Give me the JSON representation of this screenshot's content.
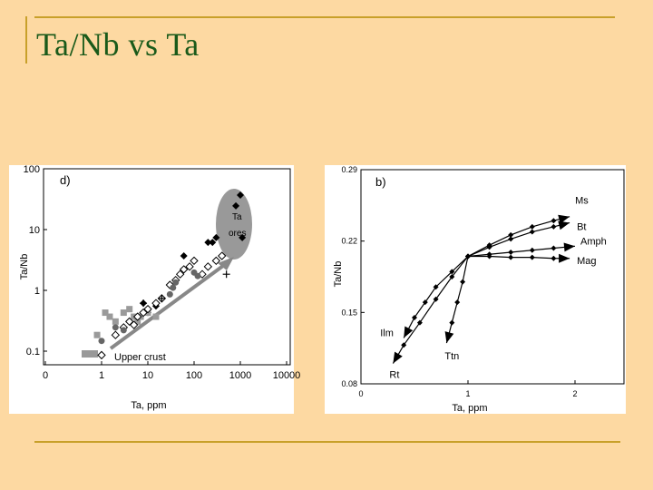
{
  "slide": {
    "title": "Ta/Nb vs Ta"
  },
  "chart_data": [
    {
      "type": "scatter",
      "panel_label": "d)",
      "xlabel": "Ta, ppm",
      "ylabel": "Ta/Nb",
      "x_scale": "log",
      "y_scale": "log",
      "x_ticks": [
        "0",
        "1",
        "10",
        "100",
        "1000",
        "10000"
      ],
      "y_ticks": [
        "100",
        "10",
        "1",
        "0.1"
      ],
      "annotations": [
        "Ta",
        "ores",
        "Upper crust"
      ],
      "series": [
        {
          "marker": "filled-diamond",
          "points": [
            [
              1000,
              30
            ],
            [
              800,
              20
            ],
            [
              1100,
              6
            ],
            [
              300,
              6
            ],
            [
              250,
              5
            ],
            [
              200,
              5
            ],
            [
              60,
              3
            ],
            [
              20,
              0.6
            ],
            [
              15,
              0.45
            ],
            [
              10,
              0.35
            ],
            [
              8,
              0.5
            ]
          ]
        },
        {
          "marker": "grey-square",
          "points": [
            [
              0.8,
              0.15
            ],
            [
              1.2,
              0.35
            ],
            [
              1.5,
              0.3
            ],
            [
              2,
              0.25
            ],
            [
              3,
              0.35
            ],
            [
              4,
              0.4
            ],
            [
              5,
              0.3
            ],
            [
              6,
              0.25
            ],
            [
              7,
              0.3
            ],
            [
              10,
              0.35
            ],
            [
              15,
              0.3
            ]
          ]
        },
        {
          "marker": "open-diamond",
          "points": [
            [
              1,
              0.07
            ],
            [
              2,
              0.15
            ],
            [
              3,
              0.2
            ],
            [
              4,
              0.25
            ],
            [
              5,
              0.22
            ],
            [
              6,
              0.3
            ],
            [
              8,
              0.35
            ],
            [
              10,
              0.4
            ],
            [
              15,
              0.5
            ],
            [
              20,
              0.6
            ],
            [
              30,
              1
            ],
            [
              40,
              1.2
            ],
            [
              50,
              1.5
            ],
            [
              60,
              1.8
            ],
            [
              80,
              2
            ],
            [
              100,
              2.5
            ],
            [
              150,
              1.5
            ],
            [
              200,
              2
            ],
            [
              300,
              2.5
            ],
            [
              400,
              3
            ]
          ]
        },
        {
          "marker": "grey-circle",
          "points": [
            [
              1,
              0.12
            ],
            [
              2,
              0.2
            ],
            [
              3,
              0.18
            ],
            [
              30,
              0.7
            ],
            [
              35,
              0.9
            ],
            [
              40,
              1.1
            ],
            [
              100,
              1.6
            ],
            [
              120,
              1.4
            ]
          ]
        },
        {
          "marker": "cross",
          "points": [
            [
              8,
              0.5
            ],
            [
              20,
              0.6
            ],
            [
              500,
              1.5
            ]
          ]
        }
      ]
    },
    {
      "type": "line",
      "panel_label": "b)",
      "xlabel": "Ta, ppm",
      "ylabel": "Ta/Nb",
      "x_ticks": [
        "0",
        "1",
        "2"
      ],
      "y_ticks": [
        "0.29",
        "0.22",
        "0.15",
        "0.08"
      ],
      "xlim": [
        0,
        2.5
      ],
      "ylim": [
        0.08,
        0.29
      ],
      "series": [
        {
          "name": "Ms",
          "x": [
            1,
            1.2,
            1.4,
            1.6,
            1.8,
            1.95
          ],
          "y": [
            0.205,
            0.216,
            0.226,
            0.234,
            0.24,
            0.244
          ]
        },
        {
          "name": "Bt",
          "x": [
            1,
            1.2,
            1.4,
            1.6,
            1.8,
            1.95
          ],
          "y": [
            0.205,
            0.214,
            0.222,
            0.229,
            0.234,
            0.238
          ]
        },
        {
          "name": "Amph",
          "x": [
            1,
            1.2,
            1.4,
            1.6,
            1.8,
            2.0
          ],
          "y": [
            0.205,
            0.207,
            0.209,
            0.211,
            0.213,
            0.215
          ]
        },
        {
          "name": "Mag",
          "x": [
            1,
            1.2,
            1.4,
            1.6,
            1.8,
            1.95
          ],
          "y": [
            0.205,
            0.205,
            0.204,
            0.204,
            0.203,
            0.203
          ]
        },
        {
          "name": "Ilm",
          "x": [
            1,
            0.85,
            0.7,
            0.6,
            0.5,
            0.4
          ],
          "y": [
            0.205,
            0.19,
            0.175,
            0.16,
            0.145,
            0.125
          ]
        },
        {
          "name": "Rt",
          "x": [
            1,
            0.85,
            0.7,
            0.55,
            0.4,
            0.3
          ],
          "y": [
            0.205,
            0.185,
            0.163,
            0.14,
            0.118,
            0.1
          ]
        },
        {
          "name": "Ttn",
          "x": [
            1,
            0.95,
            0.9,
            0.85,
            0.8
          ],
          "y": [
            0.205,
            0.18,
            0.16,
            0.14,
            0.12
          ]
        }
      ]
    }
  ]
}
